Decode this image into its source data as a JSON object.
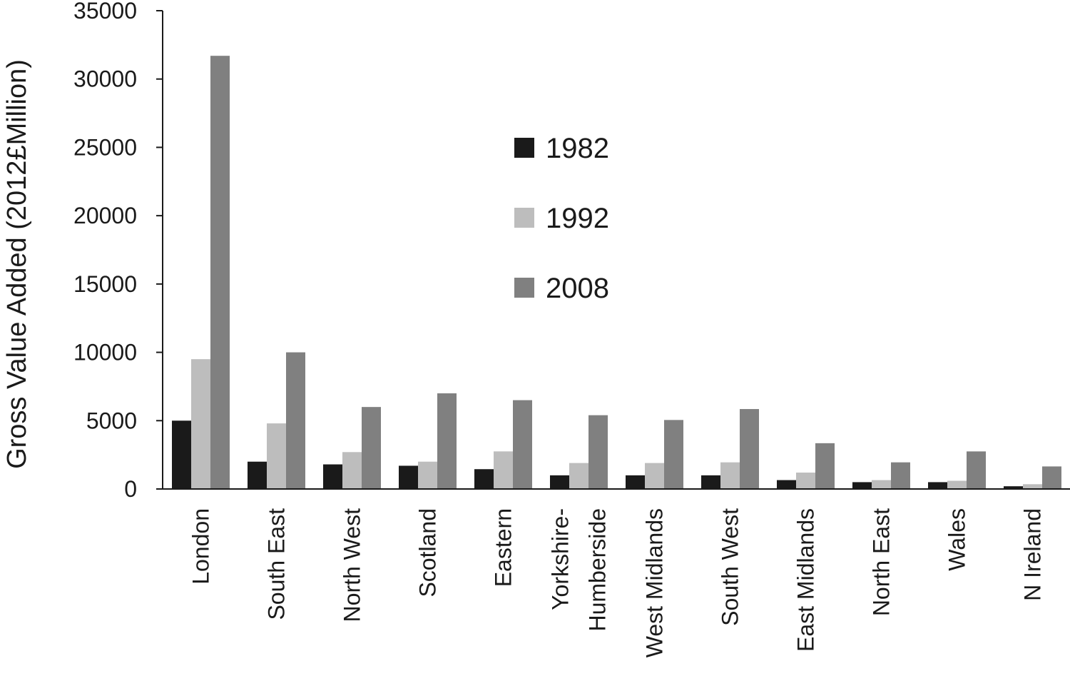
{
  "chart_data": {
    "type": "bar",
    "title": "",
    "xlabel": "",
    "ylabel": "Gross Value Added (2012£Million)",
    "ylim": [
      0,
      35000
    ],
    "yticks": [
      0,
      5000,
      10000,
      15000,
      20000,
      25000,
      30000,
      35000
    ],
    "grid": false,
    "legend_position": "upper-middle",
    "categories": [
      [
        "London"
      ],
      [
        "South East"
      ],
      [
        "North West"
      ],
      [
        "Scotland"
      ],
      [
        "Eastern"
      ],
      [
        "Yorkshire-",
        "Humberside"
      ],
      [
        "West Midlands"
      ],
      [
        "South West"
      ],
      [
        "East Midlands"
      ],
      [
        "North East"
      ],
      [
        "Wales"
      ],
      [
        "N Ireland"
      ]
    ],
    "series": [
      {
        "name": "1982",
        "color": "#1a1a1a",
        "values": [
          5000,
          2000,
          1800,
          1700,
          1450,
          1000,
          1000,
          1000,
          650,
          500,
          500,
          200
        ]
      },
      {
        "name": "1992",
        "color": "#bdbdbd",
        "values": [
          9500,
          4800,
          2700,
          2000,
          2750,
          1900,
          1900,
          1950,
          1200,
          650,
          600,
          350
        ]
      },
      {
        "name": "2008",
        "color": "#808080",
        "values": [
          31700,
          10000,
          6000,
          7000,
          6500,
          5400,
          5050,
          5850,
          3350,
          1950,
          2750,
          1650
        ]
      }
    ]
  }
}
